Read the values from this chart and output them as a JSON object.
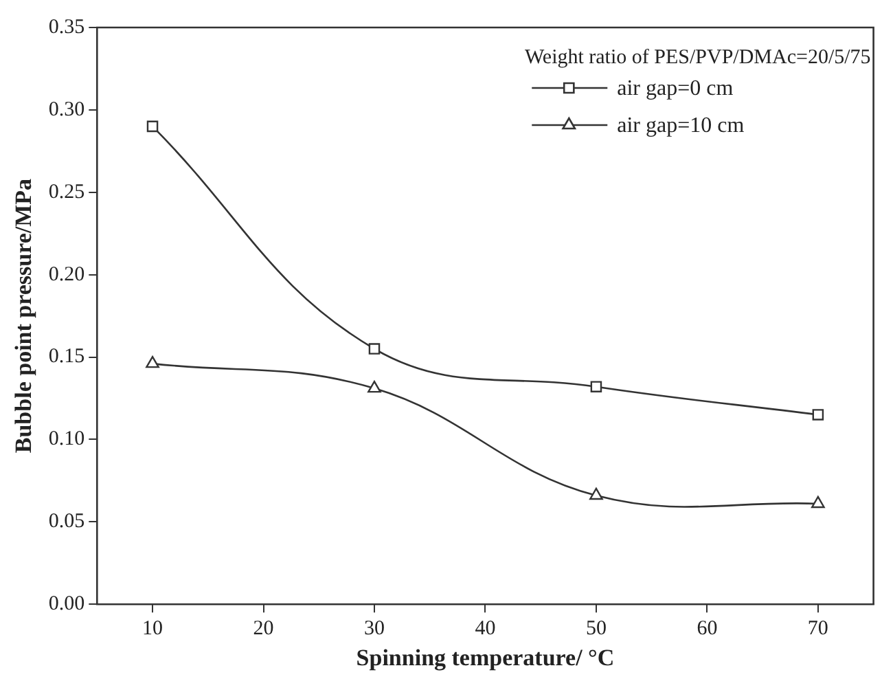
{
  "chart_data": {
    "type": "line",
    "xlabel": "Spinning temperature/ °C",
    "ylabel": "Bubble point pressure/MPa",
    "x": [
      10,
      30,
      50,
      70
    ],
    "series": [
      {
        "name": "air gap=0 cm",
        "color": "#333333",
        "values": [
          0.29,
          0.155,
          0.132,
          0.115
        ],
        "marker": "square"
      },
      {
        "name": "air gap=10 cm",
        "color": "#333333",
        "values": [
          0.146,
          0.131,
          0.066,
          0.061
        ],
        "marker": "triangle"
      }
    ],
    "xlim": [
      5,
      75
    ],
    "xticks": [
      10,
      20,
      30,
      40,
      50,
      60,
      70
    ],
    "ylim": [
      0,
      0.35
    ],
    "yticks": [
      {
        "value": 0,
        "label": "0.00"
      },
      {
        "value": 0.05,
        "label": "0.05"
      },
      {
        "value": 0.1,
        "label": "0.10"
      },
      {
        "value": 0.15,
        "label": "0.15"
      },
      {
        "value": 0.2,
        "label": "0.20"
      },
      {
        "value": 0.25,
        "label": "0.25"
      },
      {
        "value": 0.3,
        "label": "0.30"
      },
      {
        "value": 0.35,
        "label": "0.35"
      }
    ],
    "grid": false,
    "legend": "top right",
    "line_style": "solid",
    "annotations": [
      "Weight ratio of PES/PVP/DMAc=20/5/75"
    ]
  }
}
